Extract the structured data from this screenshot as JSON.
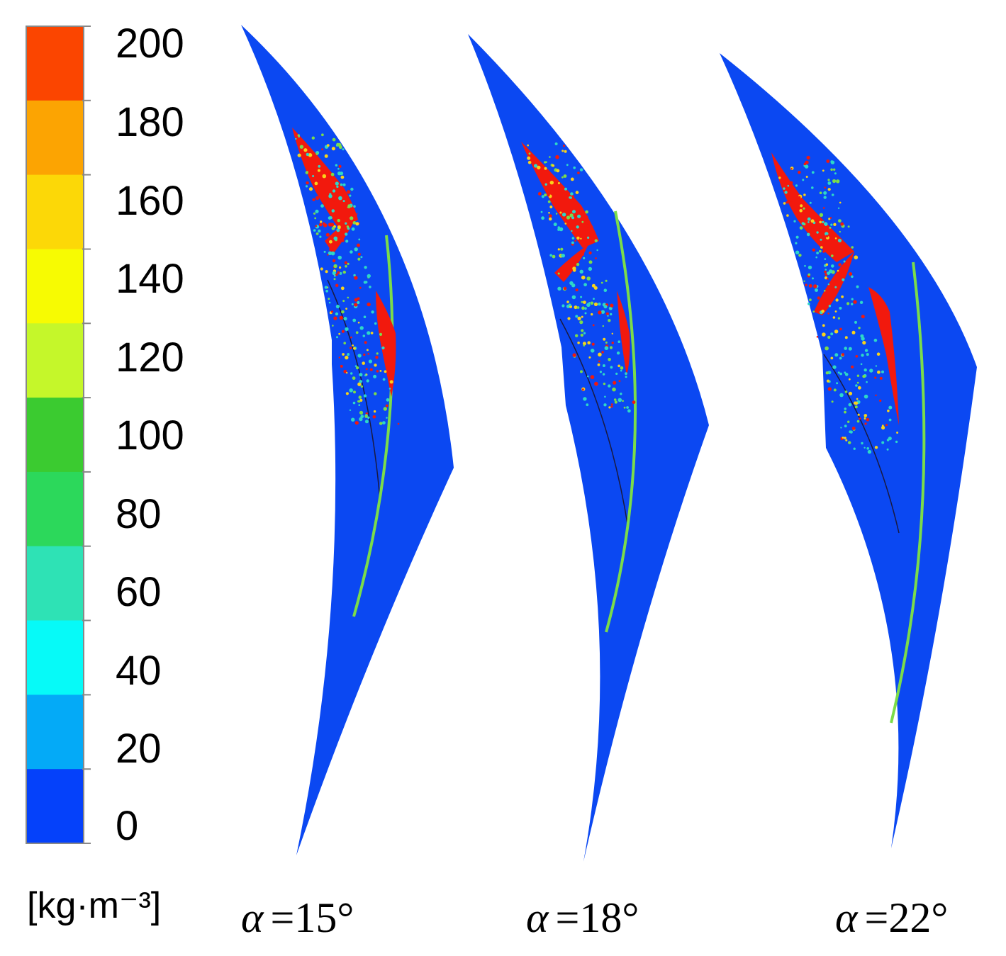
{
  "colorbar": {
    "ticks": [
      "200",
      "180",
      "160",
      "140",
      "120",
      "100",
      "80",
      "60",
      "40",
      "20",
      "0"
    ],
    "band_colors": [
      "#fb4500",
      "#fca402",
      "#fcd807",
      "#f7fb02",
      "#c5f72a",
      "#3bcb30",
      "#2cd85b",
      "#2ee2b5",
      "#06faf8",
      "#04aaf7",
      "#0541fa"
    ],
    "unit_label": "[kg·m⁻³]"
  },
  "panels": [
    {
      "alpha_symbol": "α",
      "angle": "=15°"
    },
    {
      "alpha_symbol": "α",
      "angle": "=18°"
    },
    {
      "alpha_symbol": "α",
      "angle": "=22°"
    }
  ],
  "colors": {
    "blade_fill": "#0b48f2",
    "high_density": "#f2190d",
    "interface_line": "#7bdc4a",
    "speckle": "#2dd7c8",
    "speckle_warm": "#f9d31a"
  }
}
